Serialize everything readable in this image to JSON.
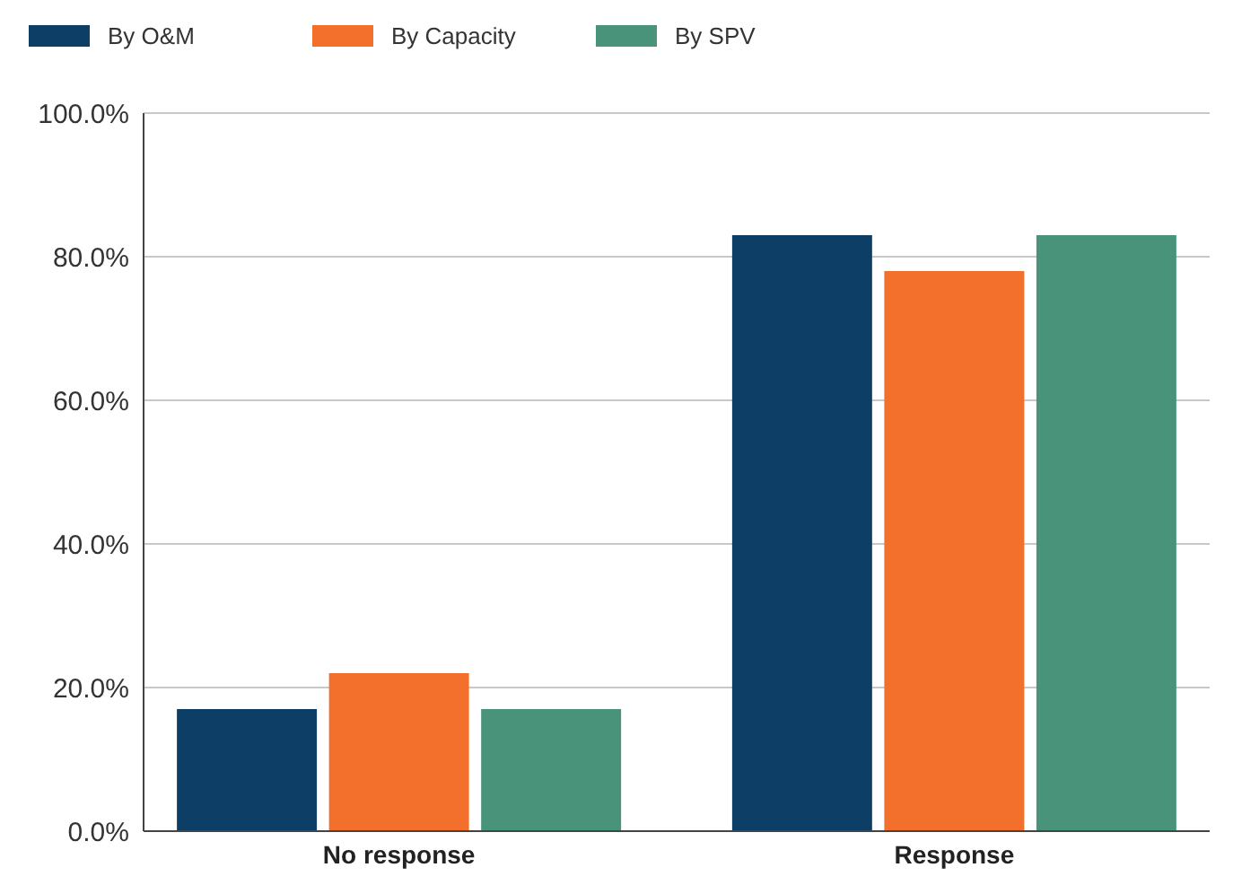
{
  "chart_data": {
    "type": "bar",
    "categories": [
      "No response",
      "Response"
    ],
    "series": [
      {
        "name": "By O&M",
        "color": "#0d3f66",
        "values": [
          17,
          83
        ]
      },
      {
        "name": "By Capacity",
        "color": "#f2702c",
        "values": [
          22,
          78
        ]
      },
      {
        "name": "By SPV",
        "color": "#48937a",
        "values": [
          17,
          83
        ]
      }
    ],
    "ylim": [
      0,
      100
    ],
    "yticks": [
      {
        "value": 0,
        "label": "0.0%"
      },
      {
        "value": 20,
        "label": "20.0%"
      },
      {
        "value": 40,
        "label": "40.0%"
      },
      {
        "value": 60,
        "label": "60.0%"
      },
      {
        "value": 80,
        "label": "80.0%"
      },
      {
        "value": 100,
        "label": "100.0%"
      }
    ],
    "grid": "y",
    "legend": "top left"
  }
}
